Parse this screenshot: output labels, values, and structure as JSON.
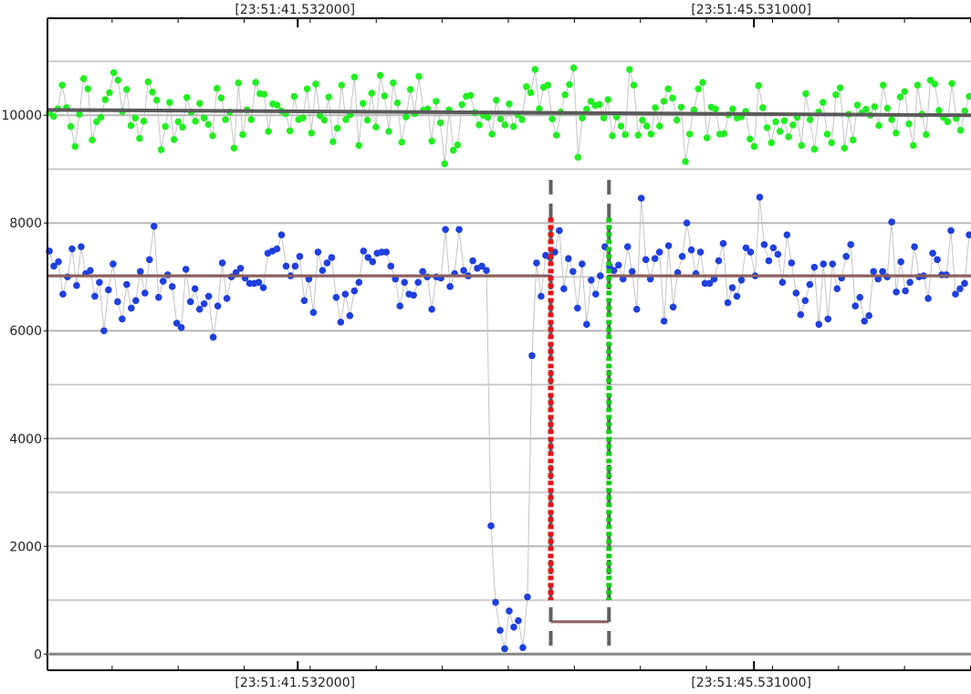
{
  "chart_data": {
    "type": "scatter",
    "title": "",
    "xlabel": "",
    "ylabel": "",
    "y_ticks": [
      "0",
      "2000",
      "4000",
      "6000",
      "8000",
      "10000"
    ],
    "x_tick_labels_top": [
      "[23:51:41.532000]",
      "[23:51:45.531000]"
    ],
    "x_tick_labels_bottom": [
      "[23:51:41.532000]",
      "[23:51:45.531000]"
    ],
    "ylim": [
      -300,
      11800
    ],
    "xlim": [
      0,
      100
    ],
    "grid": true,
    "legend": "none",
    "series": [
      {
        "color": "#22ee22",
        "marker": "circle",
        "values": [
          10050,
          9980,
          10120,
          10560,
          10140,
          9790,
          9420,
          10020,
          10680,
          10490,
          9540,
          9880,
          9960,
          10290,
          10420,
          10790,
          10650,
          10070,
          10480,
          9810,
          9950,
          9570,
          9890,
          10620,
          10430,
          10280,
          9360,
          9790,
          10240,
          9550,
          9880,
          9780,
          10330,
          10060,
          9890,
          10220,
          9950,
          9830,
          9620,
          10500,
          10320,
          9920,
          10060,
          9390,
          10600,
          9640,
          10100,
          9920,
          10610,
          10400,
          10390,
          9700,
          10210,
          10190,
          10080,
          10030,
          9710,
          10350,
          9920,
          9950,
          10490,
          9670,
          10580,
          9990,
          9910,
          10340,
          9510,
          9760,
          10560,
          9920,
          10010,
          10710,
          9440,
          10220,
          9910,
          10410,
          9780,
          10740,
          10360,
          9700,
          10600,
          10230,
          9500,
          9970,
          10480,
          10030,
          10720,
          10090,
          10120,
          9520,
          10260,
          9860,
          9100,
          10100,
          9350,
          9450,
          10200,
          10350,
          10370,
          10050,
          9820,
          10000,
          9960,
          9650,
          10280,
          9930,
          9820,
          10210,
          9790,
          10010,
          9920,
          10530,
          10420,
          10850,
          10120,
          10520,
          10560,
          9930,
          9630,
          10060,
          10380,
          10570,
          10880,
          9220,
          9950,
          10110,
          10260,
          10180,
          10200,
          9950,
          10290,
          9620,
          9970,
          9800,
          9640,
          10850,
          10560,
          9630,
          9910,
          9800,
          9650,
          10140,
          9800,
          10260,
          10490,
          10320,
          9910,
          10150,
          9140,
          9650,
          10100,
          10490,
          10610,
          9580,
          10150,
          10120,
          9650,
          9660,
          10010,
          10120,
          9950,
          9970,
          10070,
          9560,
          9420,
          10550,
          10140,
          9770,
          9490,
          9880,
          9700,
          9900,
          9600,
          9820,
          9960,
          9440,
          10400,
          9920,
          9370,
          10060,
          10240,
          9650,
          9490,
          10380,
          10510,
          9390,
          10020,
          9540,
          10190,
          10040,
          10110,
          10000,
          10160,
          9810,
          10560,
          10130,
          9920,
          9670,
          10340,
          10440,
          9840,
          9440,
          10560,
          10020,
          9640,
          10650,
          10580,
          10090,
          9960,
          9880,
          10590,
          9940,
          9720,
          10080,
          10350
        ]
      },
      {
        "color": "#1f3fe0",
        "marker": "circle",
        "values": [
          7480,
          7200,
          7280,
          6680,
          7000,
          7520,
          6840,
          7560,
          7060,
          7120,
          6640,
          6900,
          6000,
          6760,
          7240,
          6540,
          6220,
          6860,
          6420,
          6560,
          7100,
          6700,
          7320,
          7940,
          6620,
          6920,
          7040,
          6820,
          6140,
          6060,
          7140,
          6540,
          6780,
          6400,
          6500,
          6640,
          5880,
          6460,
          7260,
          6600,
          7000,
          7080,
          7160,
          6980,
          6880,
          6880,
          6900,
          6800,
          7440,
          7480,
          7520,
          7780,
          7200,
          7020,
          7200,
          7380,
          6560,
          6960,
          6340,
          7460,
          7120,
          7260,
          7360,
          6620,
          6160,
          6680,
          6280,
          6740,
          6900,
          7480,
          7360,
          7280,
          7440,
          7460,
          7460,
          7200,
          6960,
          6460,
          6900,
          6680,
          6660,
          6900,
          7100,
          7000,
          6400,
          7000,
          6980,
          7880,
          6820,
          7060,
          7880,
          7120,
          7020,
          7300,
          7160,
          7200,
          7120,
          2380,
          960,
          440,
          100,
          800,
          500,
          620,
          120,
          1060,
          5540,
          7260,
          6640,
          7400,
          7360,
          7460,
          7860,
          6780,
          7340,
          7100,
          6420,
          7240,
          6120,
          6940,
          6680,
          7020,
          7560,
          7200,
          7120,
          7220,
          6960,
          7560,
          7100,
          6400,
          8460,
          7320,
          6960,
          7340,
          7460,
          6180,
          7580,
          6440,
          7080,
          7380,
          8000,
          7500,
          7060,
          7460,
          6880,
          6880,
          6960,
          7300,
          7620,
          6520,
          6800,
          6640,
          6940,
          7540,
          7460,
          7020,
          8480,
          7600,
          7300,
          7540,
          7420,
          6900,
          7780,
          7260,
          6700,
          6300,
          6560,
          6860,
          7180,
          6120,
          7240,
          6220,
          7240,
          6780,
          6980,
          7380,
          7600,
          6460,
          6620,
          6180,
          6280,
          7100,
          6960,
          7100,
          7000,
          8020,
          6720,
          7280,
          6740,
          6900,
          7560,
          7000,
          7020,
          6600,
          7440,
          7320,
          7040,
          7040,
          7860,
          6680,
          6780,
          6880,
          7780
        ]
      }
    ],
    "reference_lines": [
      {
        "color": "#5a5a5a",
        "y_start": 10100,
        "y_end": 10000
      },
      {
        "color": "#8b5e5a",
        "y_start": 7020,
        "y_end": 7020,
        "drop_from": 54.5,
        "drop_to": 60.8,
        "drop_level": 600
      }
    ],
    "transitions": [
      {
        "x": 54.5,
        "color": "#ee1111",
        "y_from": 8100,
        "y_to": 1000
      },
      {
        "x": 60.8,
        "color": "#11cc11",
        "y_from": 8100,
        "y_to": 1000
      }
    ]
  }
}
